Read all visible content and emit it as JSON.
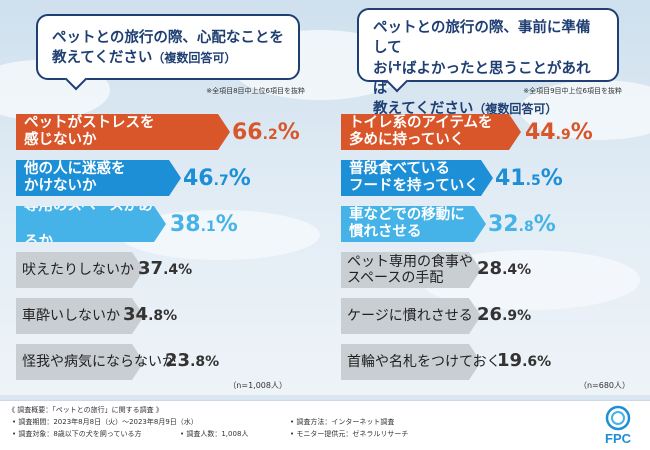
{
  "colors": {
    "orange": "#d8562a",
    "blue": "#1d8fd6",
    "lightblue": "#46b3e8",
    "gray": "#c9ced3",
    "navy": "#1f3f73"
  },
  "left": {
    "question": {
      "line1": "ペットとの旅行の際、心配なことを",
      "line2": "教えてください",
      "suffix": "（複数回答可）"
    },
    "note": "※全項目8目中上位6項目を抜粋",
    "n": "（n=1,008人）",
    "items": [
      {
        "label_lines": [
          "ペットがストレスを",
          "感じないか"
        ],
        "value_int": "66",
        "value_dec": ".2",
        "unit": "%",
        "value": 66.2,
        "style": "orange"
      },
      {
        "label_lines": [
          "他の人に迷惑を",
          "かけないか"
        ],
        "value_int": "46",
        "value_dec": ".7",
        "unit": "%",
        "value": 46.7,
        "style": "blue"
      },
      {
        "label_lines": [
          "専用のスペースがあるか"
        ],
        "value_int": "38",
        "value_dec": ".1",
        "unit": "%",
        "value": 38.1,
        "style": "lightblue"
      },
      {
        "label_lines": [
          "吠えたりしないか"
        ],
        "value_int": "37",
        "value_dec": ".4",
        "unit": "%",
        "value": 37.4,
        "style": "gray"
      },
      {
        "label_lines": [
          "車酔いしないか"
        ],
        "value_int": "34",
        "value_dec": ".8",
        "unit": "%",
        "value": 34.8,
        "style": "gray"
      },
      {
        "label_lines": [
          "怪我や病気にならないか"
        ],
        "value_int": "23",
        "value_dec": ".8",
        "unit": "%",
        "value": 23.8,
        "style": "gray"
      }
    ]
  },
  "right": {
    "question": {
      "line1": "ペットとの旅行の際、事前に準備して",
      "line2": "おけばよかったと思うことがあれば",
      "line3": "教えてください",
      "suffix": "（複数回答可）"
    },
    "note": "※全項目9目中上位6項目を抜粋",
    "n": "（n=680人）",
    "items": [
      {
        "label_lines": [
          "トイレ系のアイテムを",
          "多めに持っていく"
        ],
        "value_int": "44",
        "value_dec": ".9",
        "unit": "%",
        "value": 44.9,
        "style": "orange"
      },
      {
        "label_lines": [
          "普段食べている",
          "フードを持っていく"
        ],
        "value_int": "41",
        "value_dec": ".5",
        "unit": "%",
        "value": 41.5,
        "style": "blue"
      },
      {
        "label_lines": [
          "車などでの移動に",
          "慣れさせる"
        ],
        "value_int": "32",
        "value_dec": ".8",
        "unit": "%",
        "value": 32.8,
        "style": "lightblue"
      },
      {
        "label_lines": [
          "ペット専用の食事や",
          "スペースの手配"
        ],
        "value_int": "28",
        "value_dec": ".4",
        "unit": "%",
        "value": 28.4,
        "style": "gray"
      },
      {
        "label_lines": [
          "ケージに慣れさせる"
        ],
        "value_int": "26",
        "value_dec": ".9",
        "unit": "%",
        "value": 26.9,
        "style": "gray"
      },
      {
        "label_lines": [
          "首輪や名札をつけておく"
        ],
        "value_int": "19",
        "value_dec": ".6",
        "unit": "%",
        "value": 19.6,
        "style": "gray"
      }
    ]
  },
  "chart_data": [
    {
      "type": "bar",
      "title": "ペットとの旅行の際、心配なことを教えてください（複数回答可）",
      "categories": [
        "ペットがストレスを感じないか",
        "他の人に迷惑をかけないか",
        "専用のスペースがあるか",
        "吠えたりしないか",
        "車酔いしないか",
        "怪我や病気にならないか"
      ],
      "values": [
        66.2,
        46.7,
        38.1,
        37.4,
        34.8,
        23.8
      ],
      "ylabel": "%",
      "n": "n=1,008人"
    },
    {
      "type": "bar",
      "title": "ペットとの旅行の際、事前に準備しておけばよかったと思うことがあれば教えてください（複数回答可）",
      "categories": [
        "トイレ系のアイテムを多めに持っていく",
        "普段食べているフードを持っていく",
        "車などでの移動に慣れさせる",
        "ペット専用の食事やスペースの手配",
        "ケージに慣れさせる",
        "首輪や名札をつけておく"
      ],
      "values": [
        44.9,
        41.5,
        32.8,
        28.4,
        26.9,
        19.6
      ],
      "ylabel": "%",
      "n": "n=680人"
    }
  ],
  "footer": {
    "overview": "《 調査概要：「ペットとの旅行」に関する調査 》",
    "period": "• 調査期間：2023年8月8日（火）～2023年8月9日（水）",
    "method": "• 調査方法：インターネット調査",
    "target": "• 調査対象：8歳以下の犬を飼っている方",
    "count": "• 調査人数：1,008人",
    "provider": "• モニター提供元：ゼネラルリサーチ",
    "logo_text": "FPC"
  }
}
